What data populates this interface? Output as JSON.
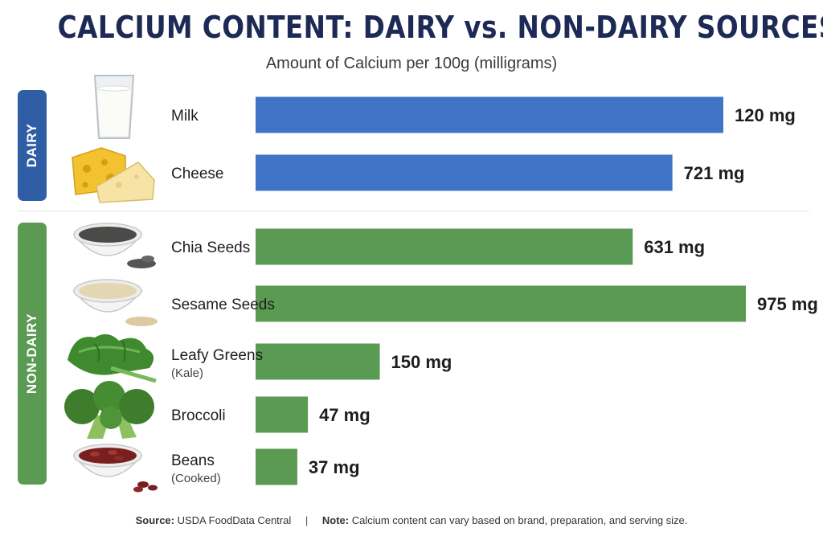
{
  "title": "CALCIUM CONTENT: DAIRY vs. NON-DAIRY SOURCES",
  "subtitle": "Amount of Calcium per 100g (milligrams)",
  "groups": {
    "dairy": "DAIRY",
    "non_dairy": "NON-DAIRY"
  },
  "colors": {
    "dairy": "#3f74c6",
    "non_dairy": "#5a9a52",
    "dairy_tag": "#2f5ea5",
    "non_dairy_tag": "#5a9a52",
    "title": "#1c2a55"
  },
  "chart_data": {
    "type": "bar",
    "orientation": "horizontal",
    "title": "CALCIUM CONTENT: DAIRY vs. NON-DAIRY SOURCES",
    "subtitle": "Amount of Calcium per 100g (milligrams)",
    "categories": [
      "Milk",
      "Cheese",
      "Chia Seeds",
      "Sesame Seeds",
      "Leafy Greens",
      "Broccoli",
      "Beans"
    ],
    "sublabels": [
      "",
      "",
      "",
      "",
      "(Kale)",
      "",
      "(Cooked)"
    ],
    "groups": [
      "DAIRY",
      "DAIRY",
      "NON-DAIRY",
      "NON-DAIRY",
      "NON-DAIRY",
      "NON-DAIRY",
      "NON-DAIRY"
    ],
    "values": [
      120,
      721,
      631,
      975,
      150,
      47,
      37
    ],
    "value_labels": [
      "120 mg",
      "721 mg",
      "631 mg",
      "975 mg",
      "150 mg",
      "47 mg",
      "37 mg"
    ],
    "unit": "mg",
    "grid": false,
    "legend": "none"
  },
  "icons": [
    "milk-glass-icon",
    "cheese-icon",
    "chia-seeds-bowl-icon",
    "sesame-seeds-bowl-icon",
    "kale-icon",
    "broccoli-icon",
    "beans-bowl-icon"
  ],
  "footer": {
    "source_label": "Source:",
    "source_text": "USDA FoodData  Central",
    "separator": "|",
    "note_label": "Note:",
    "note_text": "Calcium content can vary based on brand, preparation, and serving size."
  }
}
